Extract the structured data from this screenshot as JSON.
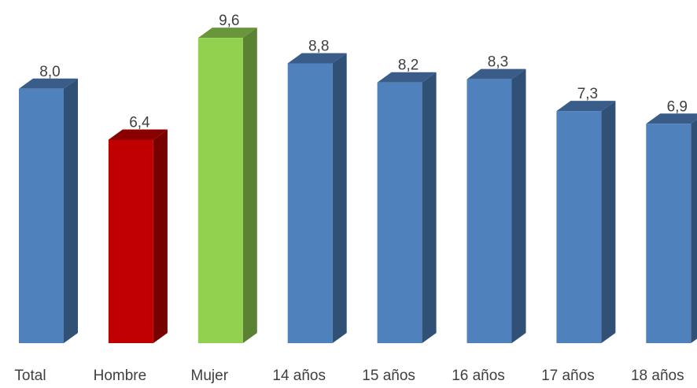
{
  "chart_data": {
    "type": "bar3d",
    "categories": [
      "Total",
      "Hombre",
      "Mujer",
      "14 años",
      "15 años",
      "16 años",
      "17 años",
      "18 años"
    ],
    "values": [
      8.0,
      6.4,
      9.6,
      8.8,
      8.2,
      8.3,
      7.3,
      6.9
    ],
    "value_labels": [
      "8,0",
      "6,4",
      "9,6",
      "8,8",
      "8,2",
      "8,3",
      "7,3",
      "6,9"
    ],
    "colors": [
      "#4f81bd",
      "#c00000",
      "#92d050",
      "#4f81bd",
      "#4f81bd",
      "#4f81bd",
      "#4f81bd",
      "#4f81bd"
    ]
  }
}
